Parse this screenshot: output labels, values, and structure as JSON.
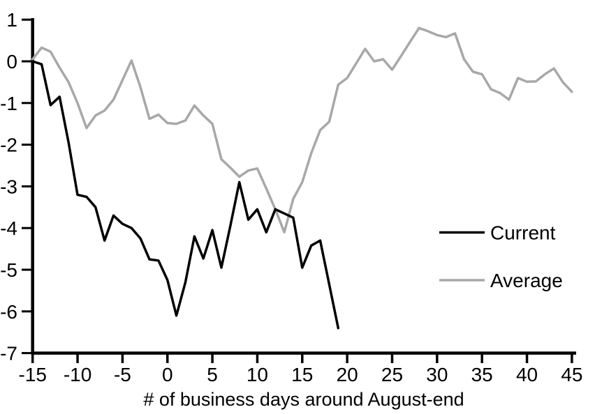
{
  "chart_data": {
    "type": "line",
    "title": "",
    "xlabel": "# of business days around August-end",
    "ylabel": "",
    "x_range": [
      -15,
      45
    ],
    "ylim": [
      -7,
      1
    ],
    "x_ticks": [
      -15,
      -10,
      -5,
      0,
      5,
      10,
      15,
      20,
      25,
      30,
      35,
      40,
      45
    ],
    "y_ticks": [
      1,
      0,
      -1,
      -2,
      -3,
      -4,
      -5,
      -6,
      -7
    ],
    "grid": false,
    "legend_position": "right-middle",
    "background_color": "#ffffff",
    "series": [
      {
        "name": "Current",
        "color": "#000000",
        "x_start": -15,
        "x_step": 1,
        "values": [
          0.0,
          -0.07,
          -1.05,
          -0.85,
          -1.95,
          -3.2,
          -3.25,
          -3.5,
          -4.3,
          -3.7,
          -3.9,
          -4.0,
          -4.25,
          -4.75,
          -4.78,
          -5.25,
          -6.1,
          -5.3,
          -4.2,
          -4.73,
          -4.05,
          -4.95,
          -3.95,
          -2.9,
          -3.8,
          -3.55,
          -4.1,
          -3.55,
          -3.65,
          -3.75,
          -4.95,
          -4.42,
          -4.3,
          -5.35,
          -6.4
        ]
      },
      {
        "name": "Average",
        "color": "#a8a8a8",
        "x_start": -15,
        "x_step": 1,
        "values": [
          0.05,
          0.33,
          0.23,
          -0.15,
          -0.5,
          -1.0,
          -1.6,
          -1.3,
          -1.18,
          -0.92,
          -0.45,
          0.02,
          -0.62,
          -1.38,
          -1.28,
          -1.48,
          -1.5,
          -1.42,
          -1.06,
          -1.3,
          -1.5,
          -2.35,
          -2.55,
          -2.77,
          -2.62,
          -2.57,
          -3.05,
          -3.55,
          -4.1,
          -3.3,
          -2.9,
          -2.2,
          -1.65,
          -1.45,
          -0.56,
          -0.4,
          -0.05,
          0.3,
          0.0,
          0.05,
          -0.2,
          0.13,
          0.47,
          0.8,
          0.72,
          0.63,
          0.58,
          0.67,
          0.05,
          -0.25,
          -0.31,
          -0.67,
          -0.76,
          -0.92,
          -0.4,
          -0.49,
          -0.48,
          -0.31,
          -0.17,
          -0.5,
          -0.73
        ]
      }
    ]
  }
}
